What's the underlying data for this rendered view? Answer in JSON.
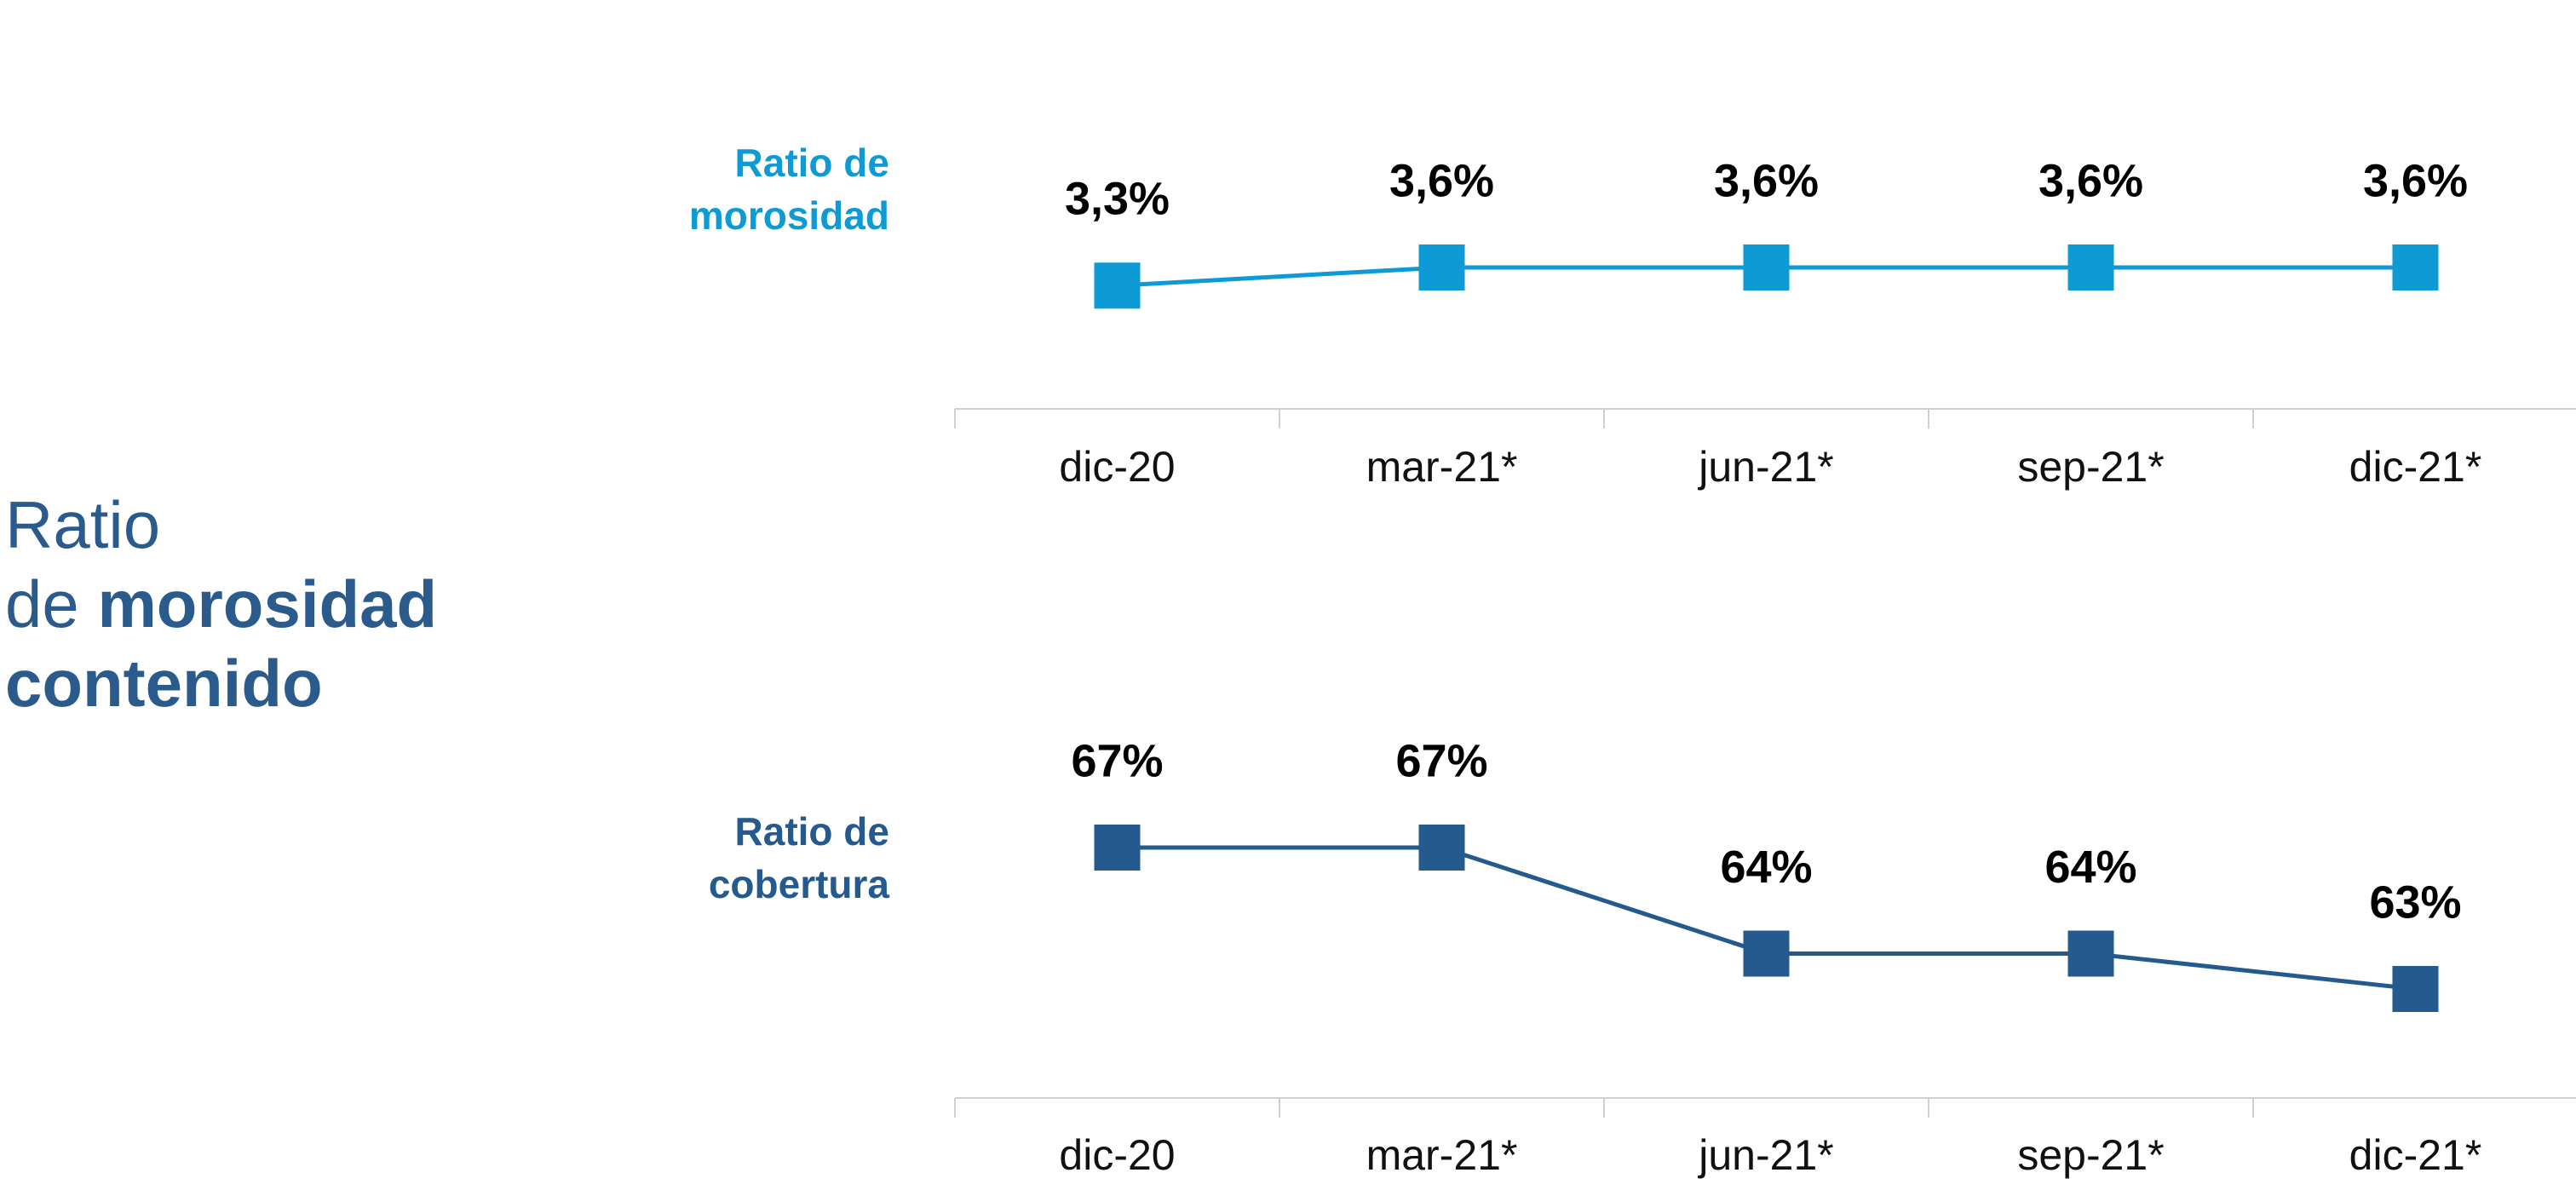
{
  "title": [
    "Ratio",
    "de",
    "morosidad",
    "contenido"
  ],
  "chart_data": [
    {
      "type": "line",
      "title": "Ratio de morosidad",
      "color": "#0e9bd5",
      "categories": [
        "dic-20",
        "mar-21*",
        "jun-21*",
        "sep-21*",
        "dic-21*"
      ],
      "values": [
        3.3,
        3.6,
        3.6,
        3.6,
        3.6
      ],
      "value_labels": [
        "3,3%",
        "3,6%",
        "3,6%",
        "3,6%",
        "3,6%"
      ]
    },
    {
      "type": "line",
      "title": "Ratio de cobertura",
      "color": "#245a8d",
      "categories": [
        "dic-20",
        "mar-21*",
        "jun-21*",
        "sep-21*",
        "dic-21*"
      ],
      "values": [
        67,
        67,
        64,
        64,
        63
      ],
      "value_labels": [
        "67%",
        "67%",
        "64%",
        "64%",
        "63%"
      ]
    }
  ]
}
